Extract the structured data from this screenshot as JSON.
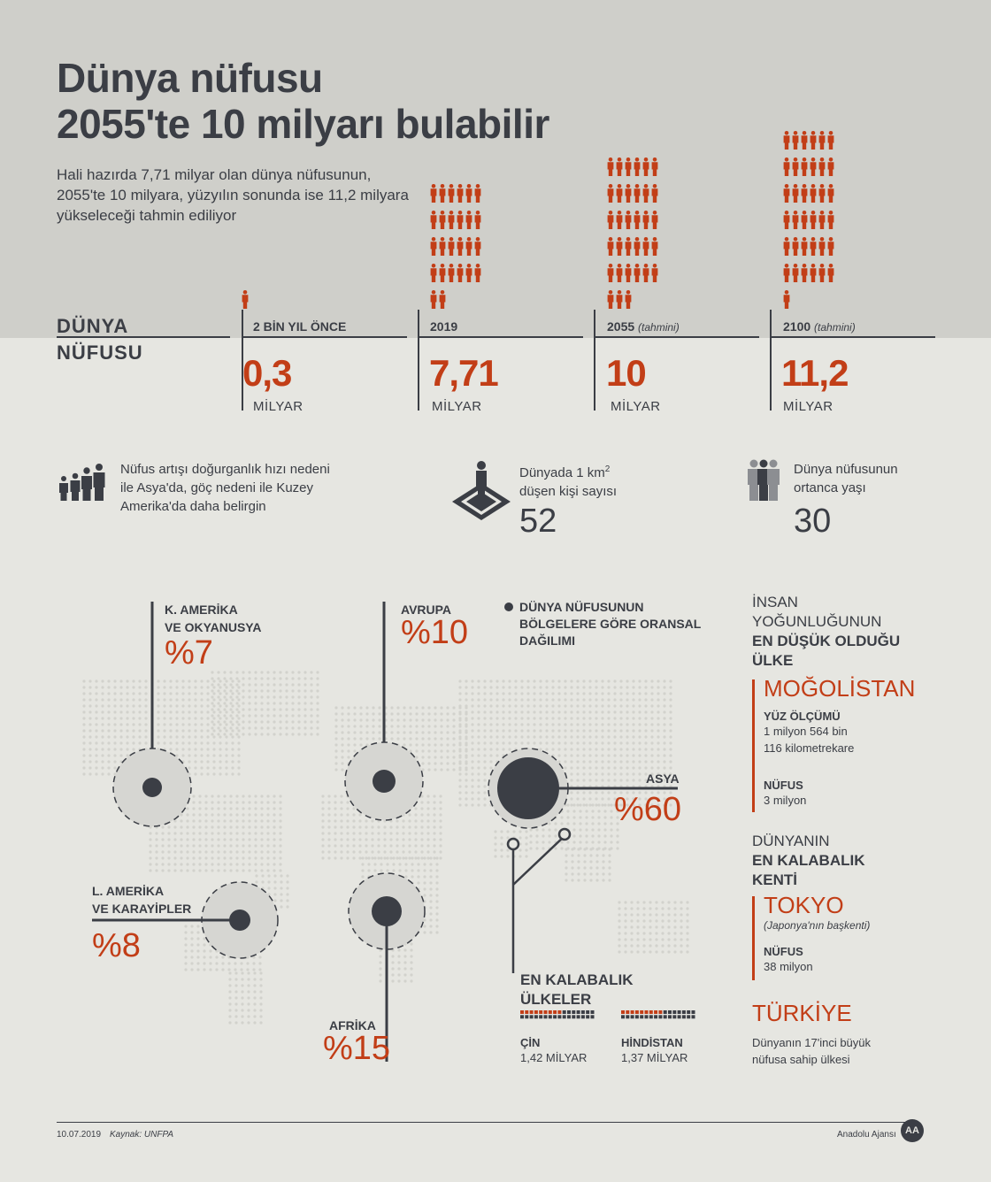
{
  "header": {
    "title_line1": "Dünya nüfusu",
    "title_line2": "2055'te 10 milyarı bulabilir",
    "subtitle_line1": "Hali hazırda 7,71 milyar olan dünya nüfusunun,",
    "subtitle_line2": "2055'te 10 milyara, yüzyılın sonunda ise 11,2 milyara",
    "subtitle_line3": "yükseleceği tahmin ediliyor"
  },
  "population": {
    "label_line1": "DÜNYA",
    "label_line2": "NÜFUSU",
    "columns": [
      {
        "label": "2 BİN YIL ÖNCE",
        "note": "",
        "value": "0,3",
        "unit": "MİLYAR"
      },
      {
        "label": "2019",
        "note": "",
        "value": "7,71",
        "unit": "MİLYAR"
      },
      {
        "label": "2055",
        "note": "(tahmini)",
        "value": "10",
        "unit": "MİLYAR"
      },
      {
        "label": "2100",
        "note": "(tahmini)",
        "value": "11,2",
        "unit": "MİLYAR"
      }
    ]
  },
  "info": {
    "growth_line1": "Nüfus artışı doğurganlık hızı nedeni",
    "growth_line2": "ile Asya'da, göç nedeni ile Kuzey",
    "growth_line3": "Amerika'da daha belirgin",
    "density_line1": "Dünyada 1 km",
    "density_sup": "2",
    "density_line2": "düşen kişi sayısı",
    "density_value": "52",
    "median_line1": "Dünya nüfusunun",
    "median_line2": "ortanca yaşı",
    "median_value": "30"
  },
  "map": {
    "legend_line1": "DÜNYA NÜFUSUNUN",
    "legend_line2": "BÖLGELERE GÖRE ORANSAL",
    "legend_line3": "DAĞILIMI",
    "most_populous_line1": "EN KALABALIK",
    "most_populous_line2": "ÜLKELER",
    "countries": [
      {
        "name": "ÇİN",
        "value": "1,42 MİLYAR"
      },
      {
        "name": "HİNDİSTAN",
        "value": "1,37 MİLYAR"
      }
    ]
  },
  "chart_data": {
    "type": "bubble",
    "title": "DÜNYA NÜFUSUNUN BÖLGELERE GÖRE ORANSAL DAĞILIMI",
    "unit": "%",
    "regions": [
      {
        "key": "kamerika",
        "name_line1": "K. AMERİKA",
        "name_line2": "VE OKYANUSYA",
        "label": "%7",
        "value": 7
      },
      {
        "key": "avrupa",
        "name_line1": "AVRUPA",
        "name_line2": "",
        "label": "%10",
        "value": 10
      },
      {
        "key": "asya",
        "name_line1": "ASYA",
        "name_line2": "",
        "label": "%60",
        "value": 60
      },
      {
        "key": "lamerika",
        "name_line1": "L. AMERİKA",
        "name_line2": "VE KARAYİPLER",
        "label": "%8",
        "value": 8
      },
      {
        "key": "afrika",
        "name_line1": "AFRİKA",
        "name_line2": "",
        "label": "%15",
        "value": 15
      }
    ],
    "population_billion": [
      {
        "period": "2 BİN YIL ÖNCE",
        "value": 0.3
      },
      {
        "period": "2019",
        "value": 7.71
      },
      {
        "period": "2055 (tahmini)",
        "value": 10
      },
      {
        "period": "2100 (tahmini)",
        "value": 11.2
      }
    ],
    "most_populous_billion": [
      {
        "country": "ÇİN",
        "value": 1.42
      },
      {
        "country": "HİNDİSTAN",
        "value": 1.37
      }
    ]
  },
  "sidebar": {
    "low_line1": "İNSAN",
    "low_line2": "YOĞUNLUĞUNUN",
    "low_line3": "EN DÜŞÜK OLDUĞU",
    "low_line4": "ÜLKE",
    "mongolia": "MOĞOLİSTAN",
    "area_label": "YÜZ ÖLÇÜMÜ",
    "area_line1": "1 milyon 564 bin",
    "area_line2": "116 kilometrekare",
    "pop_label": "NÜFUS",
    "mongolia_pop": "3 milyon",
    "city_line1": "DÜNYANIN",
    "city_line2": "EN KALABALIK",
    "city_line3": "KENTİ",
    "tokyo": "TOKYO",
    "tokyo_note": "(Japonya'nın başkenti)",
    "tokyo_pop_label": "NÜFUS",
    "tokyo_pop": "38 milyon",
    "turkey": "TÜRKİYE",
    "turkey_line1": "Dünyanın 17'inci büyük",
    "turkey_line2": "nüfusa sahip ülkesi"
  },
  "footer": {
    "date": "10.07.2019",
    "source": "Kaynak: UNFPA",
    "agency": "Anadolu Ajansı",
    "logo_text": "AA"
  },
  "colors": {
    "accent": "#c23e17",
    "dark": "#3b3e45",
    "top_band": "#cfcfca",
    "background": "#e6e6e1"
  }
}
